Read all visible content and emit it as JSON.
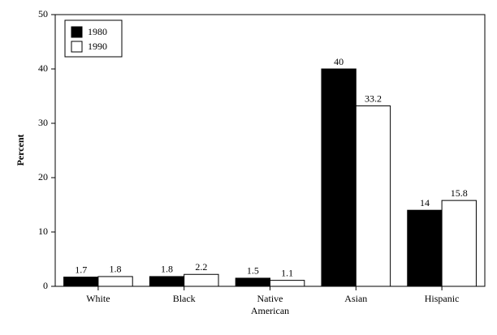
{
  "chart_data": {
    "type": "bar",
    "ylabel": "Percent",
    "categories": [
      "White",
      "Black",
      "Native American",
      "Asian",
      "Hispanic"
    ],
    "series": [
      {
        "name": "1980",
        "color": "#000000",
        "values": [
          1.7,
          1.8,
          1.5,
          40,
          14
        ]
      },
      {
        "name": "1990",
        "color": "#ffffff",
        "values": [
          1.8,
          2.2,
          1.1,
          33.2,
          15.8
        ]
      }
    ],
    "ylim": [
      0,
      50
    ],
    "yticks": [
      0,
      10,
      20,
      30,
      40,
      50
    ],
    "legend": "upper-left"
  }
}
